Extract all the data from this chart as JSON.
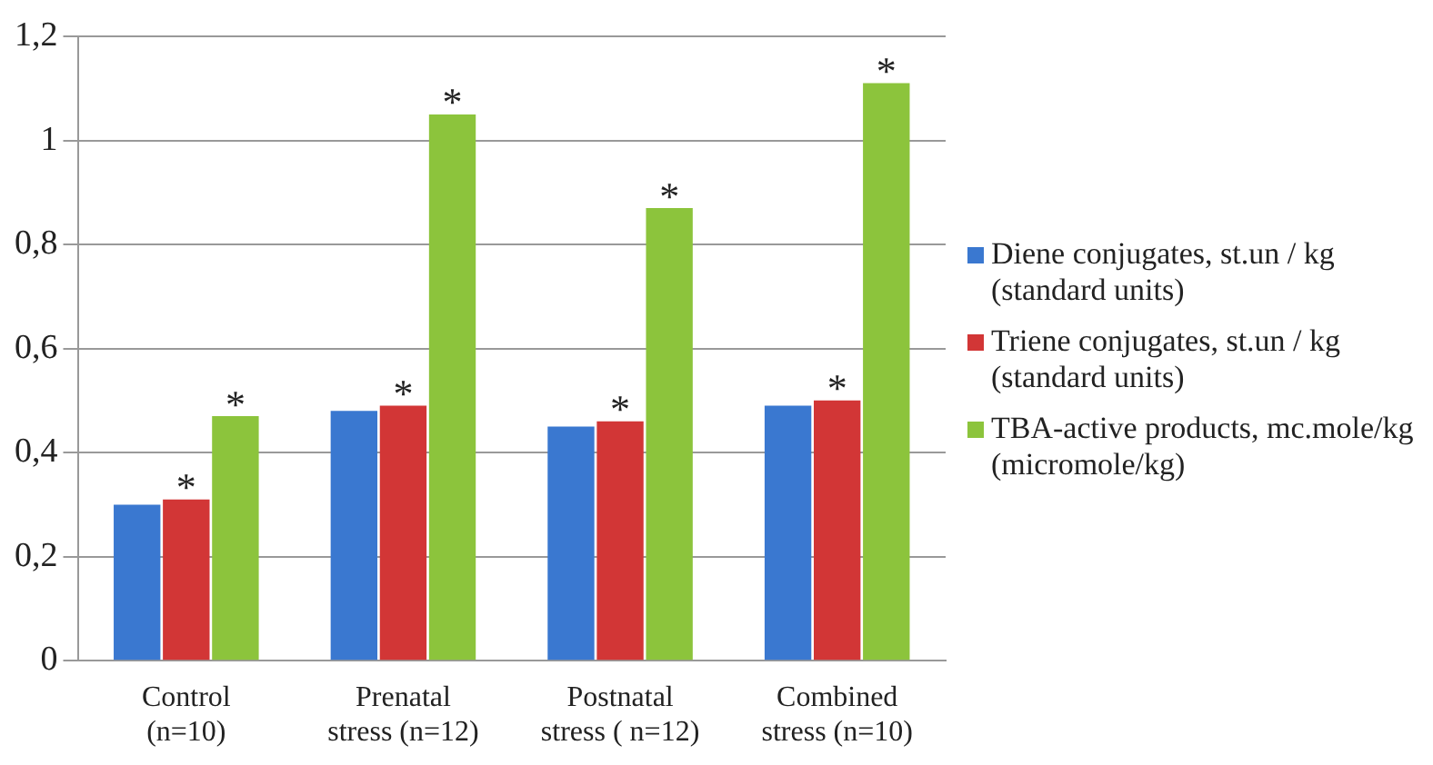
{
  "chart_data": {
    "type": "bar",
    "categories": [
      "Control\n(n=10)",
      "Prenatal\nstress (n=12)",
      "Postnatal\nstress ( n=12)",
      "Combined\nstress (n=10)"
    ],
    "series": [
      {
        "name": "Diene conjugates, st.un / kg (standard units)",
        "color": "#3a78d0",
        "values": [
          0.3,
          0.48,
          0.45,
          0.49
        ]
      },
      {
        "name": "Triene conjugates, st.un / kg (standard units)",
        "color": "#d23636",
        "values": [
          0.31,
          0.49,
          0.46,
          0.5
        ],
        "value_labels": [
          "*",
          "*",
          "*",
          "*"
        ]
      },
      {
        "name": "TBA-active products, mc.mole/kg (micromole/kg)",
        "color": "#8cc43c",
        "values": [
          0.47,
          1.05,
          0.87,
          1.11
        ],
        "value_labels": [
          "*",
          "*",
          "*",
          "*"
        ]
      }
    ],
    "ylim": [
      0,
      1.2
    ],
    "yticks": [
      0,
      {
        "value": 0.2,
        "label": "0,2"
      },
      {
        "value": 0.4,
        "label": "0,4"
      },
      {
        "value": 0.6,
        "label": "0,6"
      },
      {
        "value": 0.8,
        "label": "0,8"
      },
      1,
      {
        "value": 1.2,
        "label": "1,2"
      }
    ],
    "grid": "y",
    "legend": "right"
  }
}
